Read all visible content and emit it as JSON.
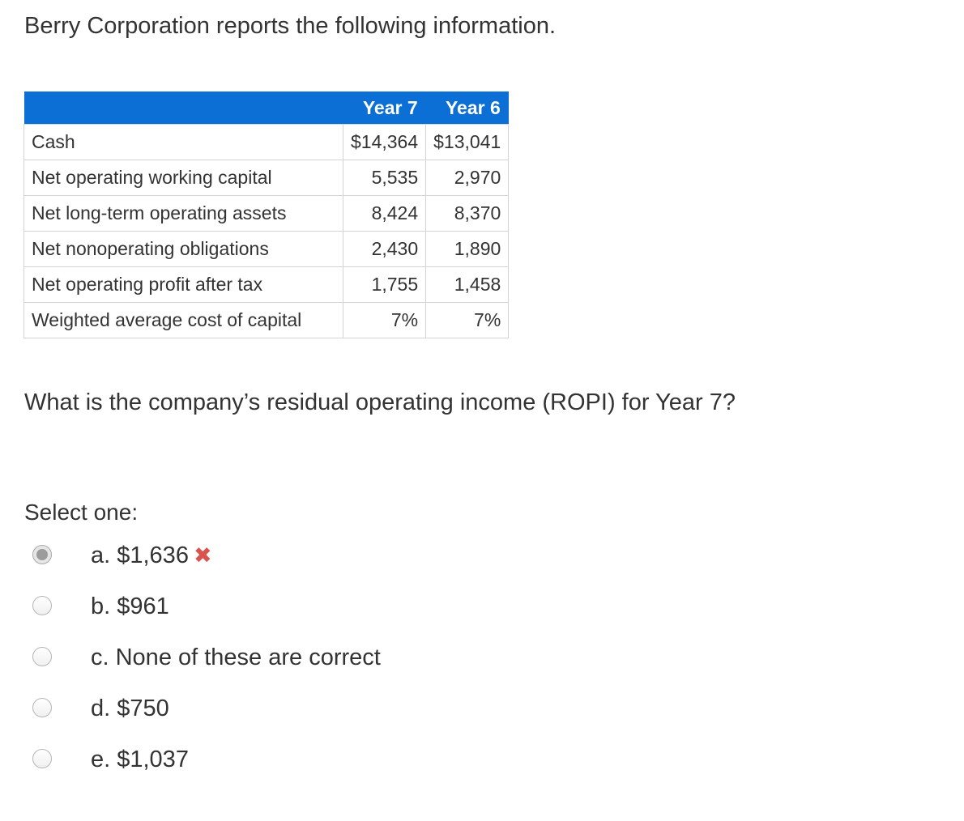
{
  "intro": "Berry Corporation reports the following information.",
  "table": {
    "headers": [
      "",
      "Year 7",
      "Year 6"
    ],
    "rows": [
      {
        "label": "Cash",
        "year7": "$14,364",
        "year6": "$13,041"
      },
      {
        "label": "Net operating working capital",
        "year7": "5,535",
        "year6": "2,970"
      },
      {
        "label": "Net long-term operating assets",
        "year7": "8,424",
        "year6": "8,370"
      },
      {
        "label": "Net nonoperating obligations",
        "year7": "2,430",
        "year6": "1,890"
      },
      {
        "label": "Net operating profit after tax",
        "year7": "1,755",
        "year6": "1,458"
      },
      {
        "label": "Weighted average cost of capital",
        "year7": "7%",
        "year6": "7%"
      }
    ]
  },
  "question": "What is the company’s residual operating income (ROPI) for Year 7?",
  "select_label": "Select one:",
  "options": [
    {
      "text": "a. $1,636",
      "selected": true,
      "feedback_icon": "incorrect-x-icon",
      "feedback_glyph": "✖"
    },
    {
      "text": "b. $961",
      "selected": false
    },
    {
      "text": "c. None of these are correct",
      "selected": false
    },
    {
      "text": "d. $750",
      "selected": false
    },
    {
      "text": "e. $1,037",
      "selected": false
    }
  ],
  "colors": {
    "header_bg": "#0b6fd6",
    "incorrect": "#d9534f"
  }
}
